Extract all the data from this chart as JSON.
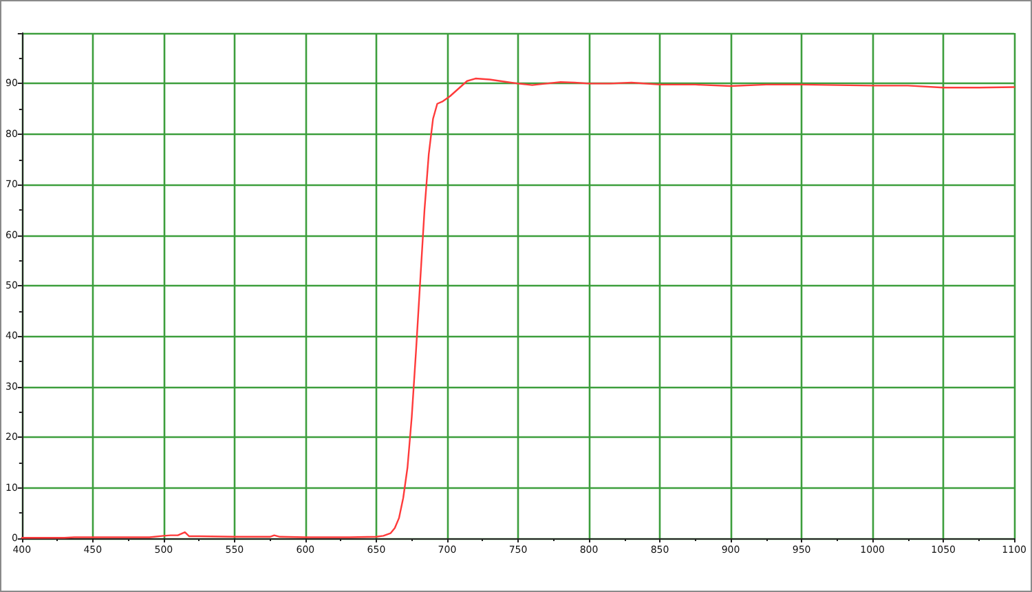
{
  "chart_data": {
    "type": "line",
    "x": [
      400,
      430,
      437,
      470,
      490,
      500,
      505,
      510,
      515,
      518,
      525,
      550,
      575,
      578,
      582,
      600,
      630,
      650,
      655,
      660,
      663,
      666,
      669,
      672,
      675,
      678,
      681,
      684,
      687,
      690,
      693,
      697,
      702,
      708,
      714,
      720,
      730,
      740,
      750,
      760,
      770,
      780,
      790,
      800,
      815,
      830,
      850,
      875,
      900,
      925,
      950,
      975,
      1000,
      1025,
      1050,
      1075,
      1100
    ],
    "values": [
      0.1,
      0.1,
      0.2,
      0.2,
      0.2,
      0.5,
      0.6,
      0.6,
      1.2,
      0.4,
      0.4,
      0.3,
      0.3,
      0.6,
      0.3,
      0.2,
      0.2,
      0.3,
      0.5,
      1.0,
      2.0,
      4,
      8,
      14,
      24,
      37,
      51,
      65,
      76,
      83,
      86,
      86.5,
      87.5,
      89,
      90.5,
      91,
      90.8,
      90.4,
      90,
      89.7,
      90,
      90.3,
      90.2,
      90,
      90,
      90.2,
      89.8,
      89.8,
      89.5,
      89.8,
      89.8,
      89.7,
      89.6,
      89.6,
      89.2,
      89.2,
      89.3
    ],
    "color": "#ff3a3a",
    "xlim": [
      400,
      1100
    ],
    "xticks": [
      400,
      450,
      500,
      550,
      600,
      650,
      700,
      750,
      800,
      850,
      900,
      950,
      1000,
      1050,
      1100
    ],
    "ylim": [
      0,
      100
    ],
    "yticks": [
      0,
      10,
      20,
      30,
      40,
      50,
      60,
      70,
      80,
      90,
      {
        "value": 100,
        "label": null
      }
    ],
    "grid": true,
    "marker": "none",
    "line_style": "solid"
  }
}
